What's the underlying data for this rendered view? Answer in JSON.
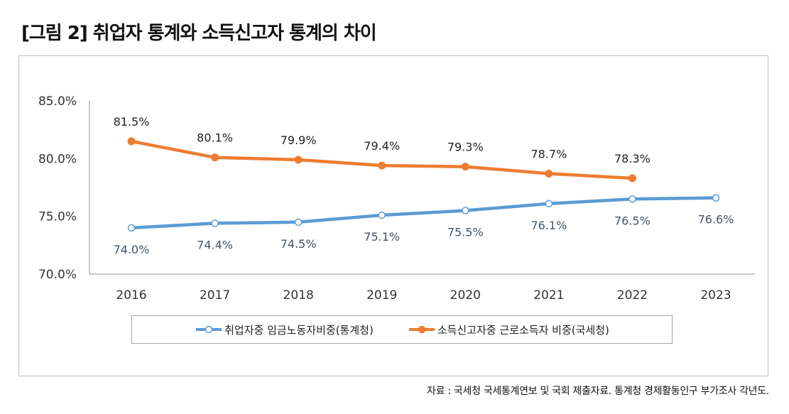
{
  "title": "[그림 2] 취업자 통계와 소득신고자 통계의 차이",
  "source": "자료 : 국세청 국세통계연보 및 국회 제출자료. 통계청 경제활동인구 부가조사 각년도.",
  "chart_data": {
    "type": "line",
    "title": "취업자 통계와 소득신고자 통계의 차이",
    "xlabel": "",
    "ylabel": "",
    "categories": [
      "2016",
      "2017",
      "2018",
      "2019",
      "2020",
      "2021",
      "2022",
      "2023"
    ],
    "ylim": [
      70.0,
      85.0
    ],
    "yticks": [
      70.0,
      75.0,
      80.0,
      85.0
    ],
    "ytick_labels": [
      "70.0%",
      "75.0%",
      "80.0%",
      "85.0%"
    ],
    "grid": false,
    "legend_position": "bottom",
    "series": [
      {
        "name": "취업자중 임금노동자비중(통계청)",
        "color": "#5b9bd5",
        "marker": "hollow-circle",
        "label_position": "below",
        "values": [
          74.0,
          74.4,
          74.5,
          75.1,
          75.5,
          76.1,
          76.5,
          76.6
        ],
        "labels": [
          "74.0%",
          "74.4%",
          "74.5%",
          "75.1%",
          "75.5%",
          "76.1%",
          "76.5%",
          "76.6%"
        ]
      },
      {
        "name": "소득신고자중 근로소득자 비중(국세청)",
        "color": "#ed7d31",
        "marker": "filled-circle",
        "label_position": "above",
        "values": [
          81.5,
          80.1,
          79.9,
          79.4,
          79.3,
          78.7,
          78.3,
          null
        ],
        "labels": [
          "81.5%",
          "80.1%",
          "79.9%",
          "79.4%",
          "79.3%",
          "78.7%",
          "78.3%",
          null
        ]
      }
    ]
  }
}
